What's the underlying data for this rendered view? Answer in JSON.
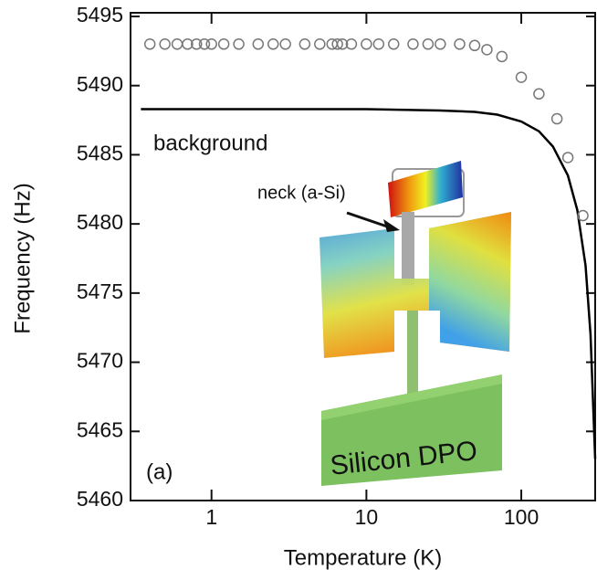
{
  "chart_data": {
    "type": "scatter-line",
    "xlabel": "Temperature (K)",
    "ylabel": "Frequency (Hz)",
    "xscale": "log",
    "xlim": [
      0.3,
      300
    ],
    "xticks": [
      1,
      10,
      100
    ],
    "ylim": [
      5460,
      5495
    ],
    "yticks": [
      5460,
      5465,
      5470,
      5475,
      5480,
      5485,
      5490,
      5495
    ],
    "series": [
      {
        "name": "background",
        "kind": "line",
        "color": "#000000",
        "x": [
          0.35,
          1,
          10,
          30,
          50,
          70,
          100,
          130,
          160,
          200,
          230,
          260,
          280,
          300
        ],
        "values": [
          5488.3,
          5488.3,
          5488.3,
          5488.2,
          5488.1,
          5487.9,
          5487.4,
          5486.7,
          5485.6,
          5483.5,
          5481,
          5477,
          5472,
          5463
        ]
      },
      {
        "kind": "scatter",
        "color": "#777777",
        "x": [
          0.4,
          0.5,
          0.6,
          0.7,
          0.8,
          0.9,
          1,
          1.2,
          1.5,
          2,
          2.5,
          3,
          4,
          5,
          6,
          6.5,
          7,
          8,
          10,
          12,
          15,
          20,
          25,
          30,
          40,
          50,
          60,
          75,
          100,
          130,
          170,
          200,
          250
        ],
        "values": [
          5493,
          5493,
          5493,
          5493,
          5493,
          5493,
          5493,
          5493,
          5493,
          5493,
          5493,
          5493,
          5493,
          5493,
          5493,
          5493,
          5493,
          5493,
          5493,
          5493,
          5493,
          5493,
          5493,
          5493,
          5493,
          5492.9,
          5492.6,
          5492.1,
          5490.6,
          5489.4,
          5487.6,
          5484.8,
          5480.6
        ]
      }
    ],
    "annotations": [
      "(a)",
      "neck (a-Si)",
      "Silicon DPO"
    ]
  }
}
